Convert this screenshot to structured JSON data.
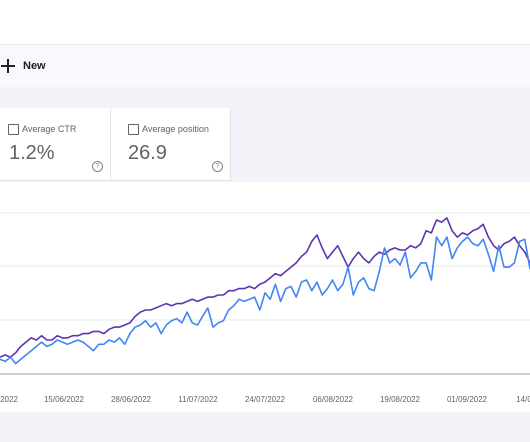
{
  "toolbar": {
    "new_label": "New"
  },
  "metrics": [
    {
      "label": "Average CTR",
      "value": "1.2%",
      "checked": false,
      "help_glyph": "?"
    },
    {
      "label": "Average position",
      "value": "26.9",
      "checked": false,
      "help_glyph": "?"
    }
  ],
  "chart_data": {
    "type": "line",
    "title": "",
    "xlabel": "",
    "ylabel": "",
    "tick_labels": [
      "2022",
      "15/06/2022",
      "28/06/2022",
      "11/07/2022",
      "24/07/2022",
      "06/08/2022",
      "19/08/2022",
      "01/09/2022",
      "14/0"
    ],
    "grid": true,
    "colors": {
      "clicks": "#5e35b1",
      "impressions": "#4285f4"
    },
    "series": [
      {
        "key": "clicks",
        "values": [
          6,
          7,
          6,
          8,
          11,
          13,
          15,
          14,
          16,
          14,
          14,
          16,
          15,
          15,
          16,
          16,
          17,
          17,
          18,
          18,
          17,
          19,
          20,
          20,
          21,
          22,
          25,
          27,
          28,
          28,
          29,
          30,
          31,
          30,
          31,
          31,
          32,
          33,
          32,
          33,
          34,
          34,
          35,
          35,
          37,
          37,
          38,
          38,
          39,
          38,
          40,
          41,
          43,
          45,
          44,
          46,
          48,
          50,
          53,
          55,
          60,
          63,
          57,
          52,
          55,
          58,
          53,
          48,
          52,
          55,
          52,
          50,
          53,
          55,
          54,
          56,
          57,
          56,
          56,
          58,
          57,
          59,
          65,
          64,
          70,
          69,
          71,
          65,
          62,
          64,
          63,
          65,
          66,
          68,
          62,
          58,
          56,
          59,
          60,
          62,
          58,
          55,
          50
        ]
      },
      {
        "key": "impressions",
        "values": [
          5,
          4,
          6,
          3,
          5,
          7,
          9,
          11,
          13,
          11,
          12,
          14,
          13,
          12,
          13,
          14,
          13,
          11,
          9,
          12,
          12,
          14,
          13,
          15,
          12,
          17,
          20,
          21,
          23,
          20,
          22,
          17,
          21,
          23,
          24,
          22,
          27,
          22,
          21,
          25,
          29,
          20,
          22,
          23,
          28,
          30,
          33,
          32,
          33,
          34,
          28,
          36,
          33,
          40,
          32,
          38,
          39,
          34,
          41,
          42,
          37,
          41,
          35,
          38,
          42,
          37,
          40,
          48,
          35,
          41,
          43,
          38,
          37,
          46,
          57,
          50,
          52,
          49,
          55,
          43,
          46,
          50,
          50,
          42,
          62,
          58,
          62,
          52,
          57,
          60,
          62,
          59,
          58,
          61,
          54,
          46,
          58,
          48,
          48,
          50,
          60,
          61,
          47
        ]
      }
    ]
  }
}
